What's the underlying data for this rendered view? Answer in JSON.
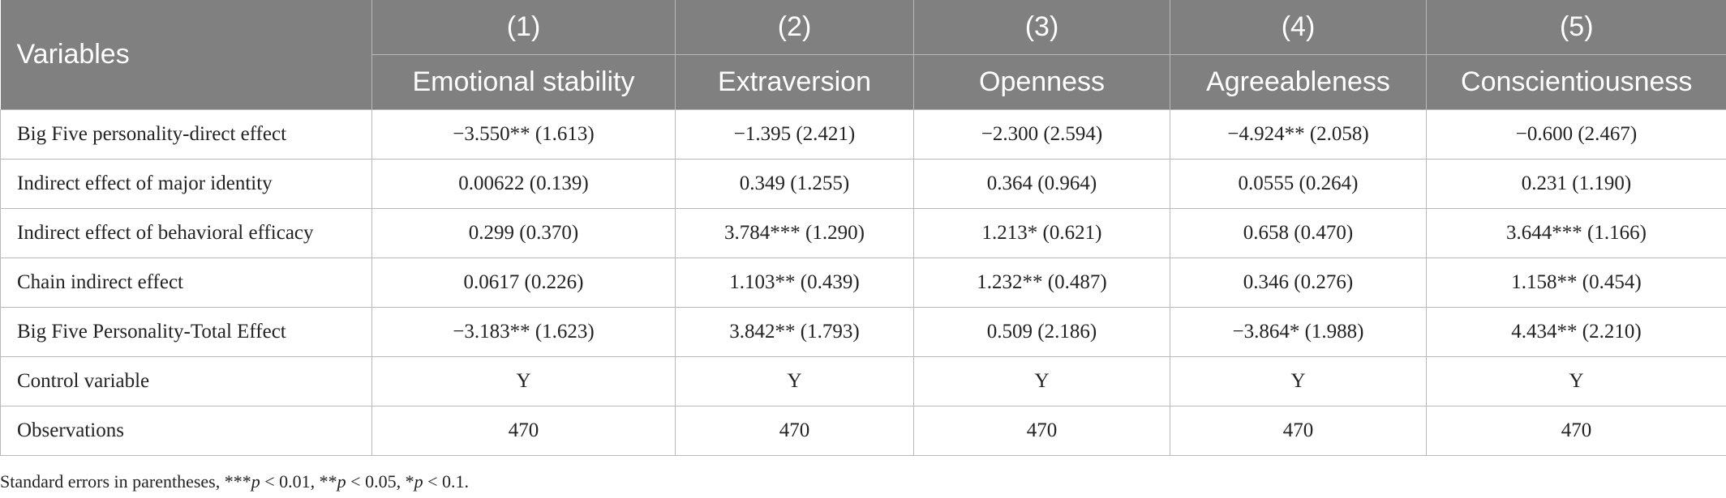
{
  "table": {
    "header": {
      "variables_label": "Variables",
      "columns": [
        {
          "number": "(1)",
          "name": "Emotional stability"
        },
        {
          "number": "(2)",
          "name": "Extraversion"
        },
        {
          "number": "(3)",
          "name": "Openness"
        },
        {
          "number": "(4)",
          "name": "Agreeableness"
        },
        {
          "number": "(5)",
          "name": "Conscientiousness"
        }
      ]
    },
    "rows": [
      {
        "label": "Big Five personality-direct effect",
        "cells": [
          "−3.550** (1.613)",
          "−1.395 (2.421)",
          "−2.300 (2.594)",
          "−4.924** (2.058)",
          "−0.600 (2.467)"
        ]
      },
      {
        "label": "Indirect effect of major identity",
        "cells": [
          "0.00622 (0.139)",
          "0.349 (1.255)",
          "0.364 (0.964)",
          "0.0555 (0.264)",
          "0.231 (1.190)"
        ]
      },
      {
        "label": "Indirect effect of behavioral efficacy",
        "cells": [
          "0.299 (0.370)",
          "3.784*** (1.290)",
          "1.213* (0.621)",
          "0.658 (0.470)",
          "3.644*** (1.166)"
        ]
      },
      {
        "label": "Chain indirect effect",
        "cells": [
          "0.0617 (0.226)",
          "1.103** (0.439)",
          "1.232** (0.487)",
          "0.346 (0.276)",
          "1.158** (0.454)"
        ]
      },
      {
        "label": "Big Five Personality-Total Effect",
        "cells": [
          "−3.183** (1.623)",
          "3.842** (1.793)",
          "0.509 (2.186)",
          "−3.864* (1.988)",
          "4.434** (2.210)"
        ]
      },
      {
        "label": "Control variable",
        "cells": [
          "Y",
          "Y",
          "Y",
          "Y",
          "Y"
        ]
      },
      {
        "label": "Observations",
        "cells": [
          "470",
          "470",
          "470",
          "470",
          "470"
        ]
      }
    ]
  },
  "footnote": {
    "prefix": "Standard errors in parentheses, ***",
    "p1": "p",
    "t1": " < 0.01, **",
    "p2": "p",
    "t2": " < 0.05, *",
    "p3": "p",
    "t3": " < 0.1."
  },
  "colors": {
    "header_bg": "#808080",
    "header_text": "#ffffff",
    "grid_line": "#b9b9b9",
    "body_text": "#222222"
  }
}
